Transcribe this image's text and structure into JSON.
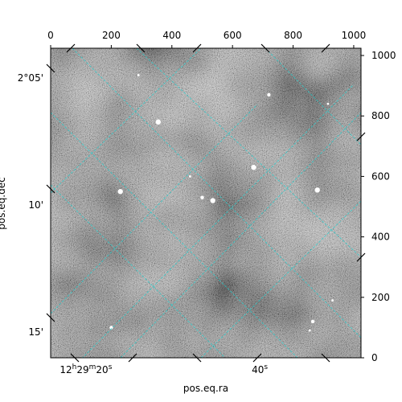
{
  "chart_data": {
    "type": "heatmap",
    "xlabel": "pos.eq.ra",
    "ylabel": "pos.eq.dec",
    "pixel_x_ticks": [
      "0",
      "200",
      "400",
      "600",
      "800",
      "1000"
    ],
    "pixel_y_ticks": [
      "0",
      "200",
      "400",
      "600",
      "800",
      "1000"
    ],
    "pixel_xlim": [
      0,
      1024
    ],
    "pixel_ylim": [
      0,
      1024
    ],
    "ra_ticks": [
      {
        "label": "12h29m20s",
        "base": "12",
        "sup1": "h",
        "mid": "29",
        "sup2": "m",
        "tail": "20",
        "sup3": "s",
        "px": 245
      },
      {
        "label": "40s",
        "base": "40",
        "sup1": "s",
        "px": 690
      }
    ],
    "dec_ticks": [
      {
        "label": "2°05'",
        "py": 925
      },
      {
        "label": "10'",
        "py": 505
      },
      {
        "label": "15'",
        "py": 85
      }
    ],
    "grid": true,
    "grid_color": "#2ecccc",
    "colormap": "gray",
    "stars": [
      {
        "x": 230,
        "y": 550,
        "brightness": "bright"
      },
      {
        "x": 355,
        "y": 780,
        "brightness": "bright"
      },
      {
        "x": 500,
        "y": 530,
        "brightness": "medium"
      },
      {
        "x": 535,
        "y": 520,
        "brightness": "bright"
      },
      {
        "x": 670,
        "y": 630,
        "brightness": "bright"
      },
      {
        "x": 720,
        "y": 870,
        "brightness": "medium"
      },
      {
        "x": 880,
        "y": 555,
        "brightness": "bright"
      },
      {
        "x": 290,
        "y": 935,
        "brightness": "faint"
      },
      {
        "x": 915,
        "y": 840,
        "brightness": "faint"
      },
      {
        "x": 200,
        "y": 100,
        "brightness": "medium"
      },
      {
        "x": 865,
        "y": 120,
        "brightness": "medium"
      },
      {
        "x": 855,
        "y": 90,
        "brightness": "faint"
      },
      {
        "x": 460,
        "y": 600,
        "brightness": "faint"
      },
      {
        "x": 930,
        "y": 190,
        "brightness": "faint"
      }
    ]
  }
}
